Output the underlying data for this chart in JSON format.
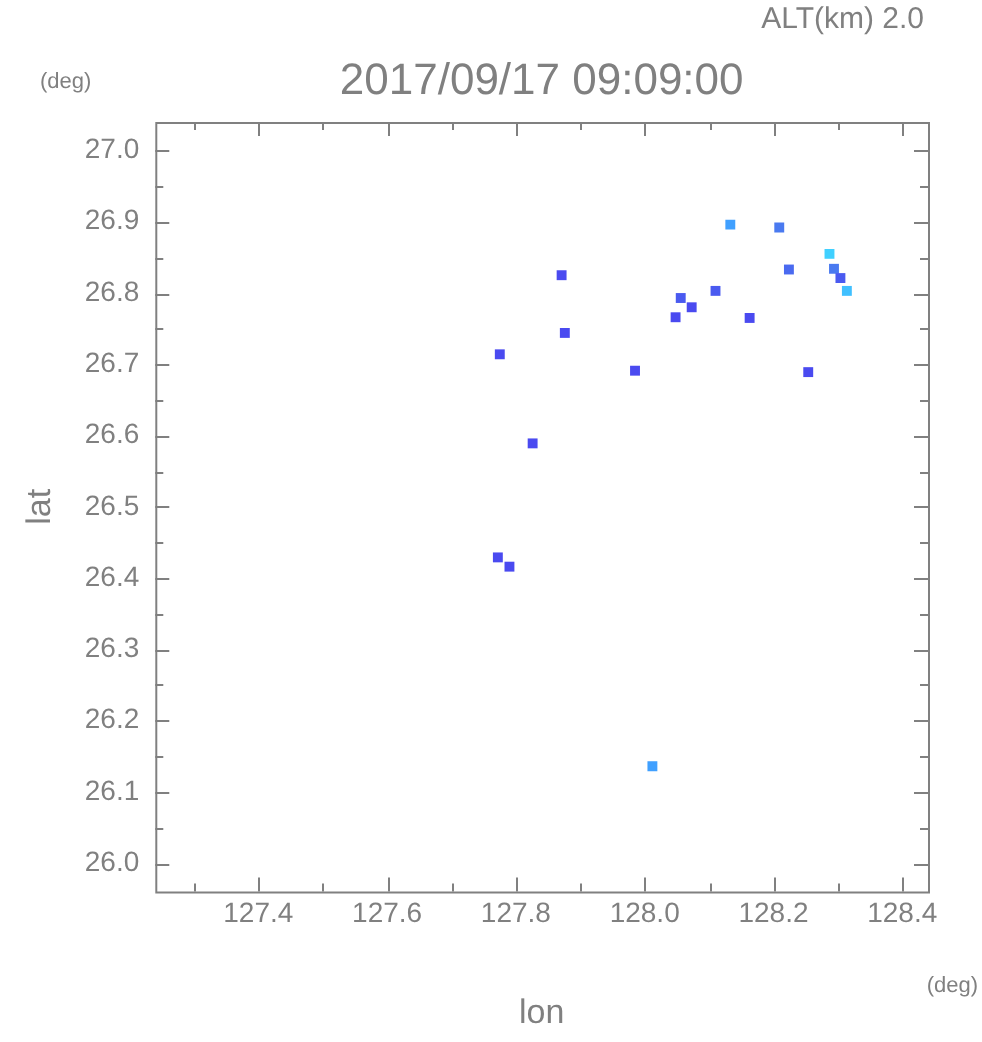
{
  "chart_data": {
    "type": "scatter",
    "title": "2017/09/17 09:09:00",
    "subtitle": "ALT(km) 2.0",
    "xlabel": "lon",
    "ylabel": "lat",
    "annotations": [
      "(deg)",
      "(deg)"
    ],
    "x": [
      128.133,
      128.209,
      128.287,
      128.294,
      128.304,
      128.314,
      128.224,
      128.056,
      128.11,
      128.073,
      128.163,
      128.254,
      127.876,
      127.775,
      127.985,
      127.871,
      128.048,
      127.826,
      127.772,
      127.79,
      128.012
    ],
    "values": [
      26.896,
      26.892,
      26.855,
      26.834,
      26.821,
      26.803,
      26.833,
      26.793,
      26.803,
      26.78,
      26.765,
      26.689,
      26.744,
      26.714,
      26.691,
      26.825,
      26.766,
      26.589,
      26.429,
      26.416,
      26.136
    ],
    "colors": [
      "#40a0ff",
      "#4a7af0",
      "#40d0ff",
      "#4a7af0",
      "#4a5af0",
      "#40c0ff",
      "#4a6af0",
      "#4a5af0",
      "#4a5af0",
      "#4a4af0",
      "#4a4af0",
      "#4a4af0",
      "#4a4af0",
      "#4a4af0",
      "#4a4af0",
      "#4a4af0",
      "#4a4af0",
      "#4a4af0",
      "#4a4af0",
      "#4a4af0",
      "#40a0ff"
    ],
    "marker": "square",
    "xlim": [
      127.24,
      128.44
    ],
    "ylim": [
      25.96,
      27.04
    ],
    "xticks": [
      {
        "value": 127.3,
        "label": null
      },
      {
        "value": 127.4,
        "label": "127.4"
      },
      {
        "value": 127.5,
        "label": null
      },
      {
        "value": 127.6,
        "label": "127.6"
      },
      {
        "value": 127.7,
        "label": null
      },
      {
        "value": 127.8,
        "label": "127.8"
      },
      {
        "value": 127.9,
        "label": null
      },
      {
        "value": 128,
        "label": "128.0"
      },
      {
        "value": 128.1,
        "label": null
      },
      {
        "value": 128.2,
        "label": "128.2"
      },
      {
        "value": 128.3,
        "label": null
      },
      {
        "value": 128.4,
        "label": "128.4"
      }
    ],
    "yticks": [
      {
        "value": 26,
        "label": "26.0"
      },
      {
        "value": 26.05,
        "label": null
      },
      {
        "value": 26.1,
        "label": "26.1"
      },
      {
        "value": 26.15,
        "label": null
      },
      {
        "value": 26.2,
        "label": "26.2"
      },
      {
        "value": 26.25,
        "label": null
      },
      {
        "value": 26.3,
        "label": "26.3"
      },
      {
        "value": 26.35,
        "label": null
      },
      {
        "value": 26.4,
        "label": "26.4"
      },
      {
        "value": 26.45,
        "label": null
      },
      {
        "value": 26.5,
        "label": "26.5"
      },
      {
        "value": 26.55,
        "label": null
      },
      {
        "value": 26.6,
        "label": "26.6"
      },
      {
        "value": 26.65,
        "label": null
      },
      {
        "value": 26.7,
        "label": "26.7"
      },
      {
        "value": 26.75,
        "label": null
      },
      {
        "value": 26.8,
        "label": "26.8"
      },
      {
        "value": 26.85,
        "label": null
      },
      {
        "value": 26.9,
        "label": "26.9"
      },
      {
        "value": 26.95,
        "label": null
      },
      {
        "value": 27,
        "label": "27.0"
      }
    ],
    "grid": false,
    "legend": false
  }
}
